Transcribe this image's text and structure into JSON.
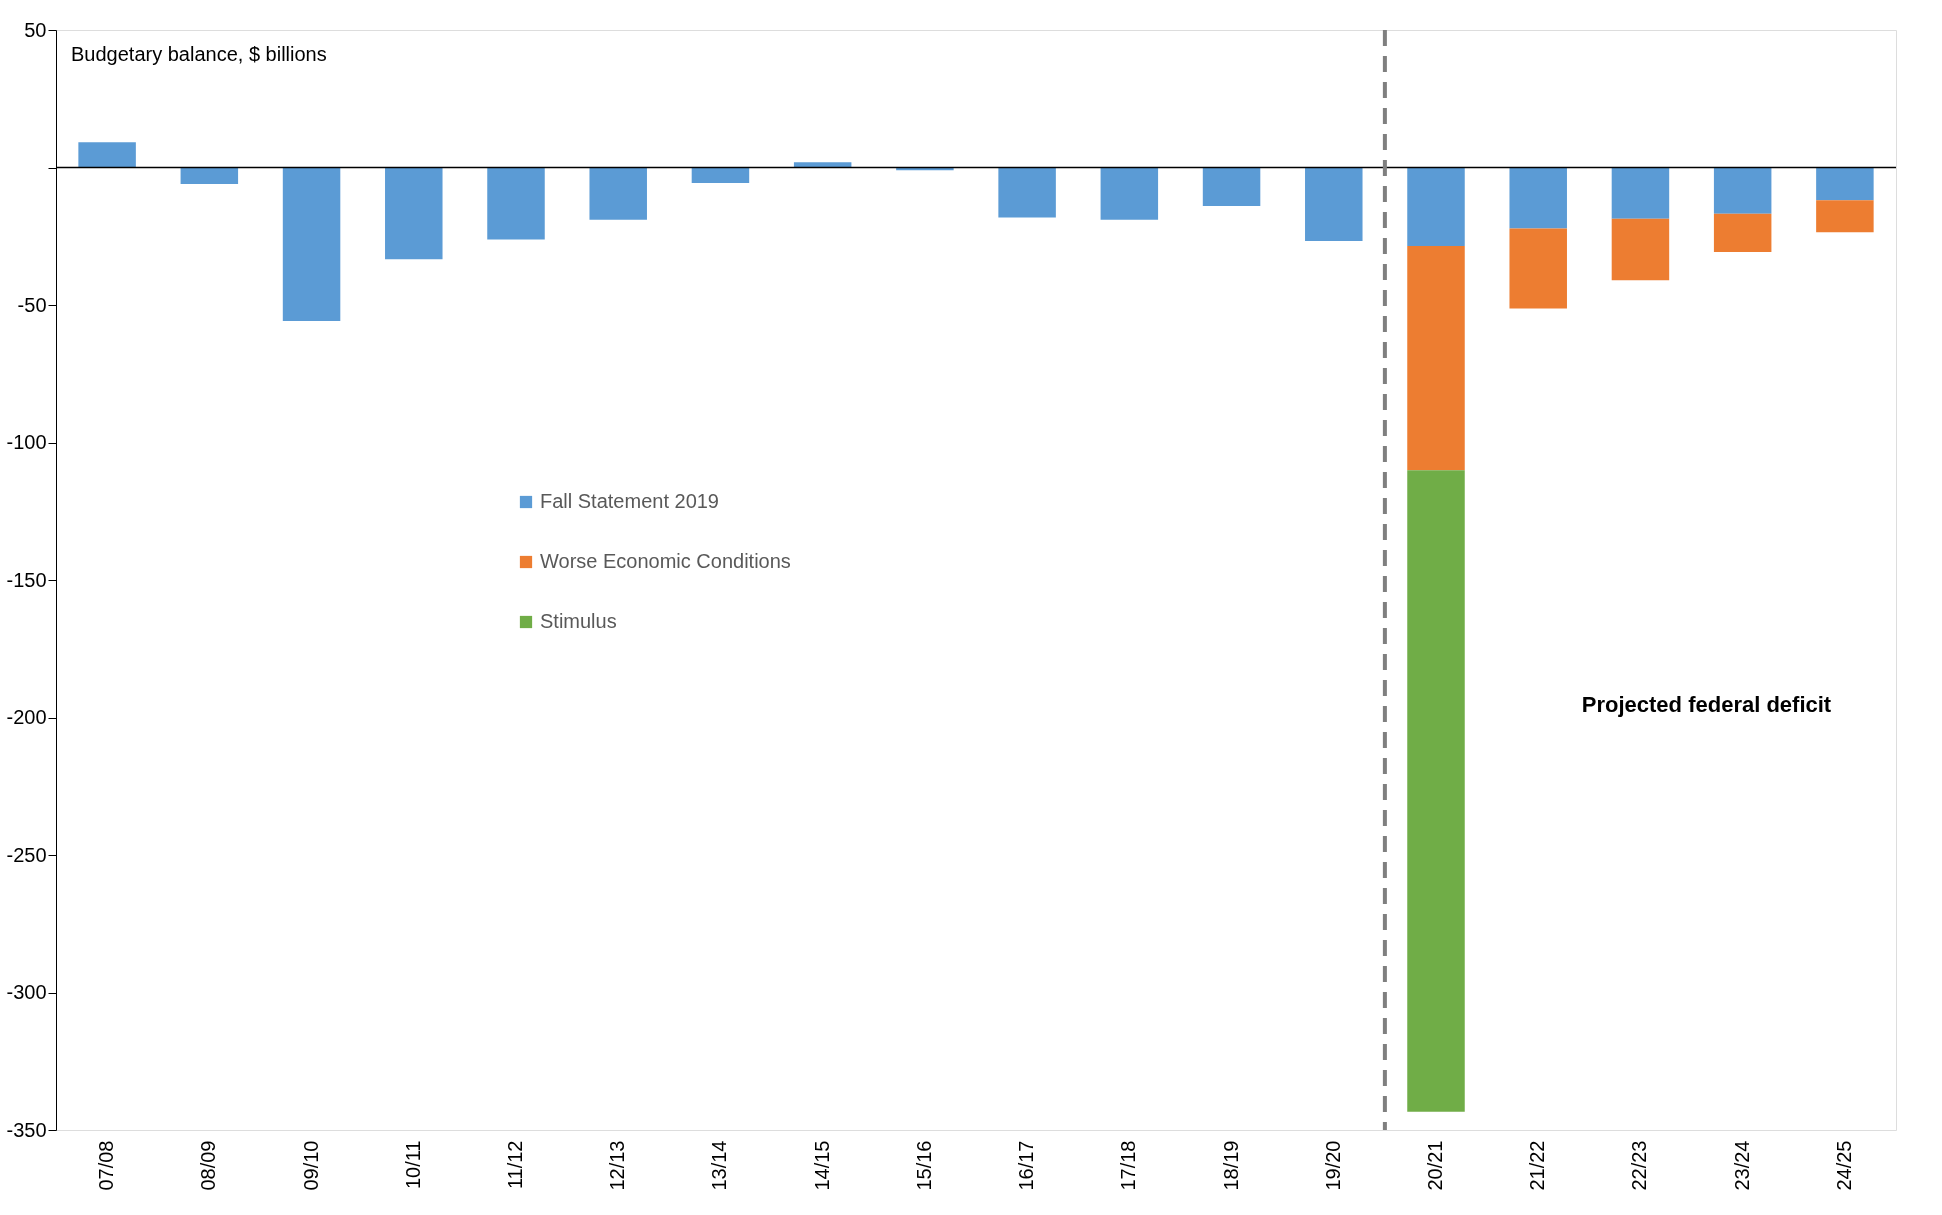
{
  "chart_data": {
    "type": "bar",
    "stacked": true,
    "ylabel": "Budgetary balance, $ billions",
    "categories": [
      "07/08",
      "08/09",
      "09/10",
      "10/11",
      "11/12",
      "12/13",
      "13/14",
      "14/15",
      "15/16",
      "16/17",
      "17/18",
      "18/19",
      "19/20",
      "20/21",
      "21/22",
      "22/23",
      "23/24",
      "24/25"
    ],
    "series": [
      {
        "name": "Fall Statement 2019",
        "color": "#5b9bd5",
        "values": [
          9.2,
          -6,
          -55.8,
          -33.4,
          -26.2,
          -19,
          -5.6,
          1.9,
          -1,
          -18.2,
          -19,
          -14,
          -26.7,
          -28.5,
          -22.2,
          -18.6,
          -16.8,
          -11.9
        ]
      },
      {
        "name": "Worse Economic Conditions",
        "color": "#ed7d31",
        "values": [
          null,
          null,
          null,
          null,
          null,
          null,
          null,
          null,
          null,
          null,
          null,
          null,
          null,
          -81.6,
          -29.1,
          -22.4,
          -13.9,
          -11.6
        ]
      },
      {
        "name": "Stimulus",
        "color": "#70ad47",
        "values": [
          null,
          null,
          null,
          null,
          null,
          null,
          null,
          null,
          null,
          null,
          null,
          null,
          null,
          -233.3,
          null,
          null,
          null,
          null
        ]
      }
    ],
    "ylim": [
      -350,
      50
    ],
    "yticks": [
      50,
      {
        "value": 0,
        "label": null
      },
      -50,
      -100,
      -150,
      -200,
      -250,
      -300,
      -350
    ],
    "ref_lines": [
      {
        "axis": "x",
        "value": "20/21",
        "label": null,
        "color": "#7f7f7f",
        "line_style": "dashed"
      }
    ],
    "annotations": [
      "Projected federal deficit"
    ],
    "legend": "center left",
    "grid": false
  }
}
